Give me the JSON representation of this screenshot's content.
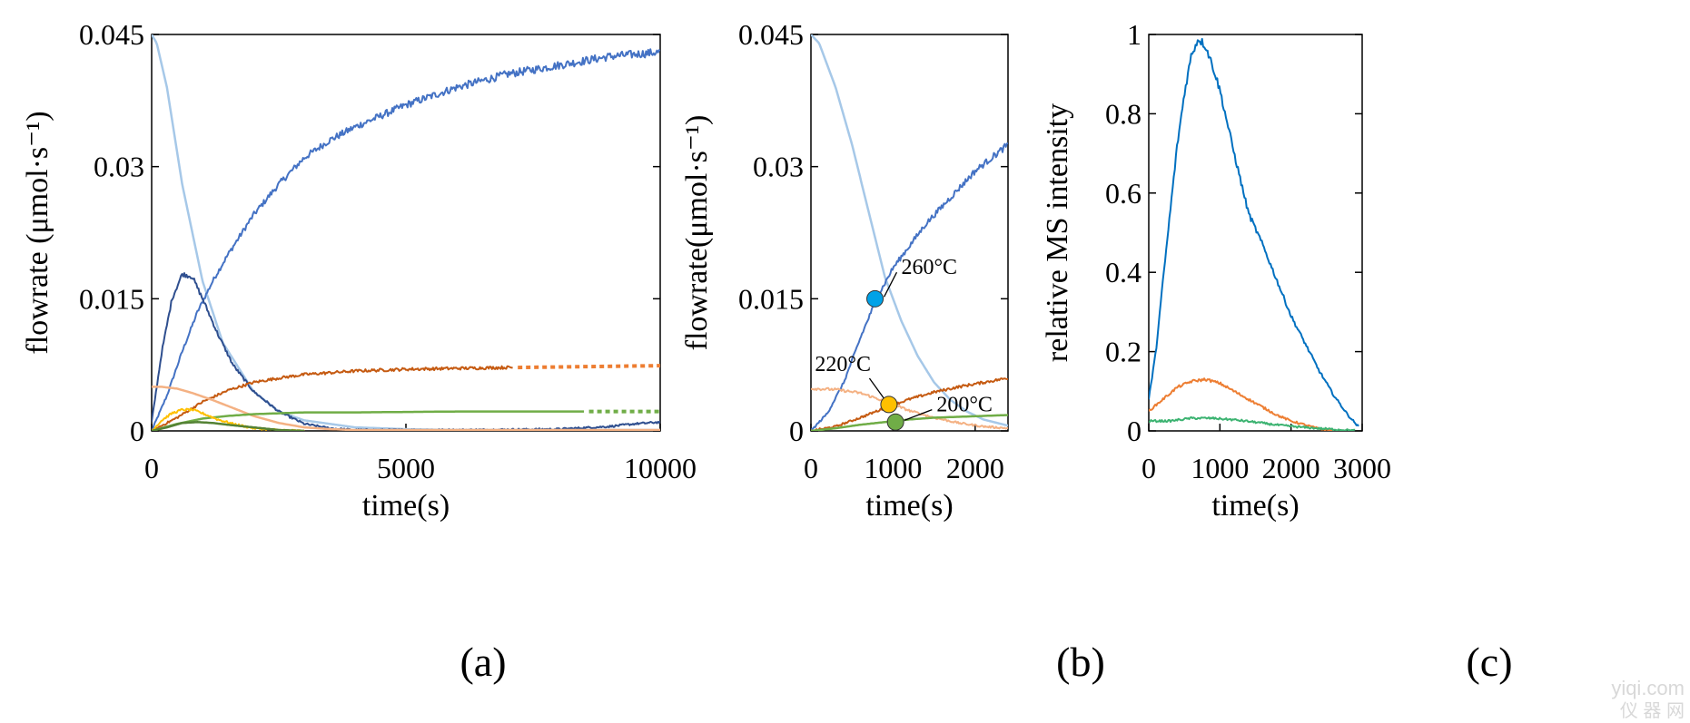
{
  "panel_labels": [
    "(a)",
    "(b)",
    "(c)"
  ],
  "watermark": {
    "line1": "yiqi.com",
    "line2": "仪 器 网"
  },
  "chart_data": [
    {
      "type": "line",
      "panel": "(a)",
      "xlabel": "time(s)",
      "ylabel": "flowrate (μmol·s⁻¹)",
      "xlim": [
        0,
        10000
      ],
      "ylim": [
        0,
        0.045
      ],
      "xticks": [
        "0",
        "5000",
        "10000"
      ],
      "yticks": [
        "0",
        "0.015",
        "0.03",
        "0.045"
      ],
      "grid": false,
      "series": [
        {
          "color": "#A6C8E8",
          "x": [
            0,
            100,
            300,
            600,
            1000,
            1400,
            2000,
            2500,
            3000,
            4000,
            5000,
            6000,
            8000,
            10000
          ],
          "y": [
            0.045,
            0.044,
            0.039,
            0.028,
            0.017,
            0.01,
            0.0045,
            0.0022,
            0.0012,
            0.0004,
            0.0002,
            0.0001,
            0.0001,
            0.0001
          ]
        },
        {
          "color": "#4472C4",
          "noisy": true,
          "x": [
            0,
            300,
            600,
            900,
            1200,
            1500,
            2000,
            2500,
            3000,
            3500,
            4000,
            5000,
            6000,
            7000,
            8000,
            9000,
            10000
          ],
          "y": [
            0,
            0.004,
            0.009,
            0.0135,
            0.017,
            0.02,
            0.0245,
            0.028,
            0.031,
            0.033,
            0.0345,
            0.037,
            0.039,
            0.0405,
            0.0415,
            0.0425,
            0.043
          ]
        },
        {
          "color": "#2F4F8F",
          "noisy": true,
          "x": [
            0,
            200,
            400,
            600,
            800,
            1000,
            1300,
            1600,
            2000,
            2500,
            3000,
            3500,
            4000,
            6000,
            8000,
            9000,
            9500,
            10000
          ],
          "y": [
            0.001,
            0.009,
            0.015,
            0.0178,
            0.0175,
            0.015,
            0.011,
            0.0075,
            0.0045,
            0.0022,
            0.0008,
            0.0003,
            0.0001,
            0.0001,
            0.0002,
            0.0005,
            0.0008,
            0.001
          ]
        },
        {
          "color": "#C55A11",
          "noisy": true,
          "x": [
            0,
            500,
            1000,
            1500,
            2000,
            2500,
            3000,
            4000,
            5000,
            6000,
            7000,
            7100
          ],
          "y": [
            0,
            0.0015,
            0.0033,
            0.0046,
            0.0055,
            0.006,
            0.0064,
            0.0068,
            0.007,
            0.0071,
            0.0072,
            0.0072
          ]
        },
        {
          "color": "#ED7D31",
          "dashed": true,
          "x": [
            7200,
            10000
          ],
          "y": [
            0.0072,
            0.0074
          ]
        },
        {
          "color": "#F4B183",
          "x": [
            0,
            200,
            500,
            800,
            1200,
            1600,
            2000,
            2500,
            3000,
            3500,
            4000,
            6000,
            8000,
            10000
          ],
          "y": [
            0.005,
            0.005,
            0.0048,
            0.0043,
            0.0035,
            0.0026,
            0.0017,
            0.0009,
            0.0004,
            0.0002,
            0.0001,
            0.0001,
            0.0001,
            0.0001
          ]
        },
        {
          "color": "#70AD47",
          "x": [
            0,
            500,
            1000,
            1500,
            2000,
            2500,
            3000,
            4000,
            6000,
            8000,
            8500
          ],
          "y": [
            0,
            0.0008,
            0.0014,
            0.0017,
            0.0019,
            0.002,
            0.0021,
            0.0021,
            0.0022,
            0.0022,
            0.0022
          ]
        },
        {
          "color": "#70AD47",
          "dashed": true,
          "x": [
            8600,
            10000
          ],
          "y": [
            0.0022,
            0.0022
          ]
        },
        {
          "color": "#FFC000",
          "noisy": true,
          "x": [
            0,
            200,
            400,
            600,
            800,
            1000,
            1300,
            1600,
            2000,
            2500,
            3000
          ],
          "y": [
            0,
            0.0012,
            0.002,
            0.0024,
            0.0024,
            0.002,
            0.0013,
            0.0008,
            0.0003,
            0.0001,
            0
          ]
        },
        {
          "color": "#548235",
          "x": [
            0,
            300,
            600,
            900,
            1200,
            1500,
            2000,
            2500,
            3000
          ],
          "y": [
            0,
            0.0004,
            0.0009,
            0.001,
            0.0009,
            0.0007,
            0.0004,
            0.0001,
            0
          ]
        }
      ]
    },
    {
      "type": "line",
      "panel": "(b)",
      "xlabel": "time(s)",
      "ylabel": "flowrate(μmol·s⁻¹)",
      "xlim": [
        0,
        2400
      ],
      "ylim": [
        0,
        0.045
      ],
      "xticks": [
        "0",
        "1000",
        "2000"
      ],
      "xtick_values": [
        0,
        1000,
        2000
      ],
      "yticks": [
        "0",
        "0.015",
        "0.03",
        "0.045"
      ],
      "grid": false,
      "series": [
        {
          "color": "#A6C8E8",
          "x": [
            0,
            100,
            300,
            500,
            700,
            900,
            1100,
            1300,
            1500,
            1700,
            1900,
            2100,
            2400
          ],
          "y": [
            0.045,
            0.044,
            0.039,
            0.0325,
            0.025,
            0.0175,
            0.0125,
            0.0085,
            0.0055,
            0.0035,
            0.0022,
            0.0013,
            0.0006
          ]
        },
        {
          "color": "#4472C4",
          "noisy": true,
          "x": [
            0,
            200,
            400,
            600,
            800,
            1000,
            1200,
            1400,
            1600,
            1800,
            2000,
            2200,
            2400
          ],
          "y": [
            0,
            0.002,
            0.0055,
            0.0105,
            0.015,
            0.0185,
            0.021,
            0.0235,
            0.0255,
            0.0275,
            0.0295,
            0.031,
            0.0325
          ]
        },
        {
          "color": "#C55A11",
          "noisy": true,
          "x": [
            0,
            300,
            600,
            900,
            1200,
            1500,
            1800,
            2100,
            2400
          ],
          "y": [
            0,
            0.0005,
            0.0015,
            0.0026,
            0.0036,
            0.0044,
            0.005,
            0.0055,
            0.006
          ]
        },
        {
          "color": "#F4B183",
          "noisy": true,
          "x": [
            0,
            300,
            600,
            800,
            1000,
            1200,
            1500,
            1800,
            2100,
            2400
          ],
          "y": [
            0.0048,
            0.0047,
            0.0043,
            0.0037,
            0.003,
            0.0023,
            0.0015,
            0.0009,
            0.0005,
            0.0003
          ]
        },
        {
          "color": "#70AD47",
          "x": [
            0,
            300,
            600,
            900,
            1200,
            1500,
            1800,
            2100,
            2400
          ],
          "y": [
            0,
            0.0003,
            0.0007,
            0.001,
            0.0013,
            0.0015,
            0.0016,
            0.0017,
            0.0018
          ]
        }
      ],
      "markers": [
        {
          "label": "260°C",
          "color": "#00A2E8",
          "x": 780,
          "y": 0.015,
          "label_x": 1100,
          "label_y": 0.0178
        },
        {
          "label": "220°C",
          "color": "#FFC000",
          "x": 950,
          "y": 0.003,
          "label_x": 270,
          "label_y": 0.0068
        },
        {
          "label": "200°C",
          "color": "#70AD47",
          "x": 1030,
          "y": 0.001,
          "label_x": 1530,
          "label_y": 0.0022
        }
      ]
    },
    {
      "type": "line",
      "panel": "(c)",
      "xlabel": "time(s)",
      "ylabel": "relative MS intensity",
      "xlim": [
        0,
        3000
      ],
      "ylim": [
        0,
        1
      ],
      "xticks": [
        "0",
        "1000",
        "2000",
        "3000"
      ],
      "yticks": [
        "0",
        "0.2",
        "0.4",
        "0.6",
        "0.8",
        "1"
      ],
      "grid": false,
      "series": [
        {
          "color": "#0070C0",
          "noisy": true,
          "x": [
            0,
            100,
            200,
            300,
            400,
            500,
            600,
            700,
            800,
            900,
            1000,
            1200,
            1400,
            1600,
            1800,
            2000,
            2200,
            2400,
            2600,
            2800,
            2950
          ],
          "y": [
            0.08,
            0.2,
            0.38,
            0.55,
            0.72,
            0.85,
            0.95,
            0.99,
            0.97,
            0.92,
            0.86,
            0.7,
            0.55,
            0.47,
            0.38,
            0.29,
            0.22,
            0.15,
            0.09,
            0.04,
            0.01
          ]
        },
        {
          "color": "#ED7D31",
          "noisy": true,
          "x": [
            0,
            200,
            400,
            600,
            800,
            1000,
            1200,
            1400,
            1600,
            1800,
            2000,
            2200,
            2400,
            2600
          ],
          "y": [
            0.05,
            0.08,
            0.11,
            0.125,
            0.13,
            0.12,
            0.1,
            0.08,
            0.06,
            0.04,
            0.025,
            0.015,
            0.005,
            0
          ]
        },
        {
          "color": "#3CB371",
          "noisy": true,
          "x": [
            0,
            300,
            600,
            900,
            1200,
            1500,
            1800,
            2100,
            2400,
            2700,
            2900
          ],
          "y": [
            0.025,
            0.025,
            0.032,
            0.032,
            0.028,
            0.022,
            0.015,
            0.01,
            0.006,
            0.003,
            0.001
          ]
        }
      ]
    }
  ]
}
